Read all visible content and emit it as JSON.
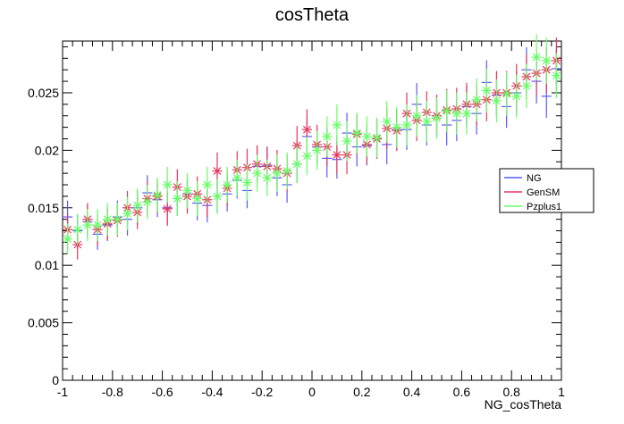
{
  "chart_data": {
    "type": "scatter",
    "title": "cosTheta",
    "xlabel": "NG_cosTheta",
    "ylabel": "",
    "xlim": [
      -1,
      1
    ],
    "ylim": [
      0,
      0.0295
    ],
    "x_ticks": [
      "-1",
      "-0.8",
      "-0.6",
      "-0.4",
      "-0.2",
      "0",
      "0.2",
      "0.4",
      "0.6",
      "0.8",
      "1"
    ],
    "x_tick_values": [
      -1,
      -0.8,
      -0.6,
      -0.4,
      -0.2,
      0,
      0.2,
      0.4,
      0.6,
      0.8,
      1
    ],
    "y_ticks": [
      "0",
      "0.005",
      "0.01",
      "0.015",
      "0.02",
      "0.025"
    ],
    "y_tick_values": [
      0,
      0.005,
      0.01,
      0.015,
      0.02,
      0.025
    ],
    "bins": 50,
    "bin_width": 0.04,
    "legend_position": "right",
    "grid": false,
    "series": [
      {
        "name": "NG",
        "color": "#5a5aff",
        "marker": "plus",
        "values": [
          0.0142,
          0.013,
          0.0138,
          0.0127,
          0.0135,
          0.0142,
          0.014,
          0.015,
          0.0163,
          0.0157,
          0.015,
          0.0158,
          0.0162,
          0.0154,
          0.0152,
          0.016,
          0.0162,
          0.0174,
          0.0165,
          0.0186,
          0.0187,
          0.0176,
          0.017,
          0.0188,
          0.0212,
          0.0203,
          0.0193,
          0.0192,
          0.0215,
          0.0203,
          0.0204,
          0.021,
          0.0205,
          0.0218,
          0.0218,
          0.024,
          0.0222,
          0.023,
          0.0222,
          0.0226,
          0.0238,
          0.0232,
          0.0259,
          0.0248,
          0.0238,
          0.025,
          0.027,
          0.026,
          0.0247,
          0.0271
        ]
      },
      {
        "name": "GenSM",
        "color": "#e8365c",
        "marker": "star",
        "values": [
          0.0131,
          0.0118,
          0.014,
          0.0131,
          0.0136,
          0.0139,
          0.015,
          0.0146,
          0.0158,
          0.016,
          0.0149,
          0.0168,
          0.016,
          0.0162,
          0.0157,
          0.0182,
          0.0167,
          0.0183,
          0.0185,
          0.0188,
          0.0186,
          0.0184,
          0.018,
          0.0204,
          0.0218,
          0.0205,
          0.0203,
          0.0196,
          0.0196,
          0.0214,
          0.0205,
          0.021,
          0.0219,
          0.0217,
          0.0232,
          0.0226,
          0.0233,
          0.023,
          0.0235,
          0.0236,
          0.024,
          0.024,
          0.0244,
          0.025,
          0.025,
          0.0256,
          0.0264,
          0.0267,
          0.027,
          0.0278
        ]
      },
      {
        "name": "Pzplus1",
        "color": "#66ff66",
        "marker": "star",
        "values": [
          0.0123,
          0.0131,
          0.0135,
          0.0135,
          0.014,
          0.014,
          0.0145,
          0.0152,
          0.0155,
          0.0161,
          0.017,
          0.0158,
          0.0165,
          0.0158,
          0.017,
          0.016,
          0.017,
          0.0176,
          0.0172,
          0.018,
          0.0176,
          0.018,
          0.0182,
          0.0188,
          0.0195,
          0.02,
          0.0212,
          0.0222,
          0.0208,
          0.0215,
          0.0212,
          0.0211,
          0.0225,
          0.022,
          0.0222,
          0.023,
          0.0225,
          0.0228,
          0.0234,
          0.0232,
          0.0232,
          0.0244,
          0.0252,
          0.0243,
          0.0249,
          0.0247,
          0.0256,
          0.0281,
          0.0278,
          0.0265
        ]
      }
    ]
  }
}
